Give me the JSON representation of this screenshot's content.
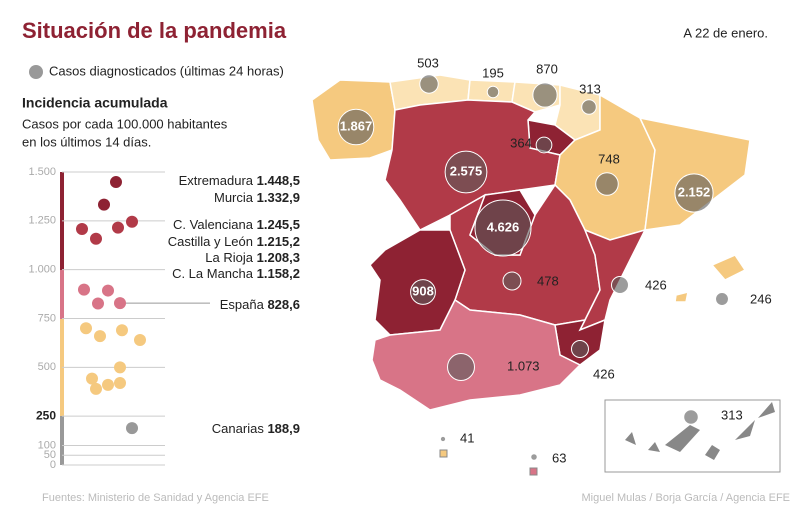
{
  "header": {
    "title": "Situación de la pandemia",
    "date": "A 22 de enero."
  },
  "legend": {
    "label": "Casos diagnosticados (últimas 24 horas)"
  },
  "incidence": {
    "title": "Incidencia acumulada",
    "subtitle": [
      "Casos por cada 100.000 habitantes",
      "en los últimos 14 días."
    ],
    "ylim": [
      0,
      1500
    ],
    "yticks": [
      {
        "value": 1500,
        "label": "1.500"
      },
      {
        "value": 1250,
        "label": "1.250"
      },
      {
        "value": 1000,
        "label": "1.000"
      },
      750,
      500,
      250,
      100,
      50,
      0
    ],
    "labeled": [
      {
        "name": "Extremadura",
        "value": 1448.5,
        "label": "1.448,5"
      },
      {
        "name": "Murcia",
        "value": 1332.9,
        "label": "1.332,9"
      },
      {
        "name": "C. Valenciana",
        "value": 1245.5,
        "label": "1.245,5"
      },
      {
        "name": "Castilla y León",
        "value": 1215.2,
        "label": "1.215,2"
      },
      {
        "name": "La Rioja",
        "value": 1208.3,
        "label": "1.208,3"
      },
      {
        "name": "C. La Mancha",
        "value": 1158.2,
        "label": "1.158,2"
      },
      {
        "name": "España",
        "value": 828.6,
        "label": "828,6"
      },
      {
        "name": "Canarias",
        "value": 188.9,
        "label": "188,9"
      }
    ],
    "others": [
      898,
      893,
      700,
      690,
      660,
      640,
      500,
      442,
      420,
      410,
      390,
      827
    ]
  },
  "cases": {
    "values": [
      1867,
      503,
      195,
      870,
      313,
      364,
      748,
      2152,
      2575,
      4626,
      908,
      478,
      426,
      246,
      426,
      1073,
      313,
      41,
      63
    ],
    "value_labels": [
      "1.867",
      "503",
      "195",
      "870",
      "313",
      "364",
      "748",
      "2.152",
      "2.575",
      "4.626",
      "908",
      "478",
      "426",
      "246",
      "426",
      "1.073",
      "313",
      "41",
      "63"
    ]
  },
  "footer": {
    "source": "Fuentes: Ministerio de Sanidad y Agencia EFE",
    "credit": "Miguel Mulas / Borja García / Agencia EFE"
  }
}
